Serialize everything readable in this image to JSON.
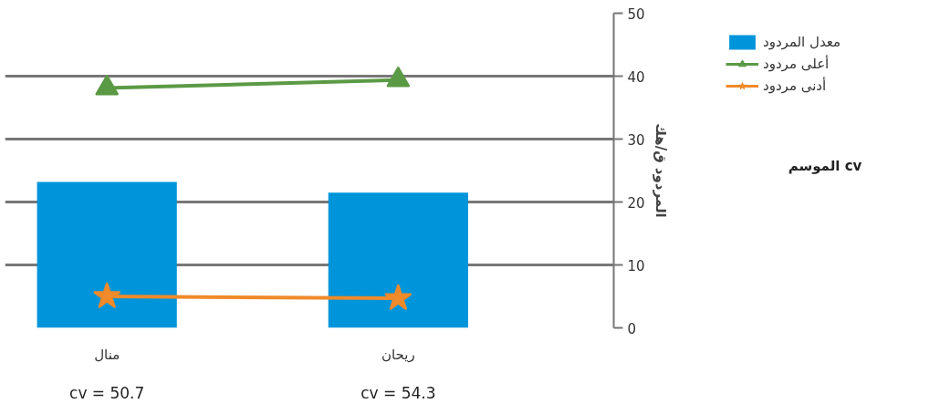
{
  "chart_data": {
    "type": "bar",
    "categories": [
      "منال",
      "ريحان"
    ],
    "series": [
      {
        "name": "معدل المردود",
        "color": "#0095da",
        "values": [
          23.2,
          21.5
        ]
      },
      {
        "name": "أعلى مردود",
        "type": "line",
        "color": "#5b9a45",
        "marker": "triangle",
        "values": [
          38.1,
          39.4
        ]
      },
      {
        "name": "أدنى مردود",
        "type": "line",
        "color": "#f08a2a",
        "marker": "star",
        "values": [
          5.0,
          4.7
        ]
      }
    ],
    "ylabel": "المردود ق/هك",
    "ylim": [
      0,
      50
    ],
    "yticks": [
      0,
      10,
      20,
      30,
      40,
      50
    ],
    "grid": "y",
    "legend": "right",
    "annotations": [
      "cv = 50.7",
      "cv = 54.3",
      "الموسم cv"
    ]
  }
}
